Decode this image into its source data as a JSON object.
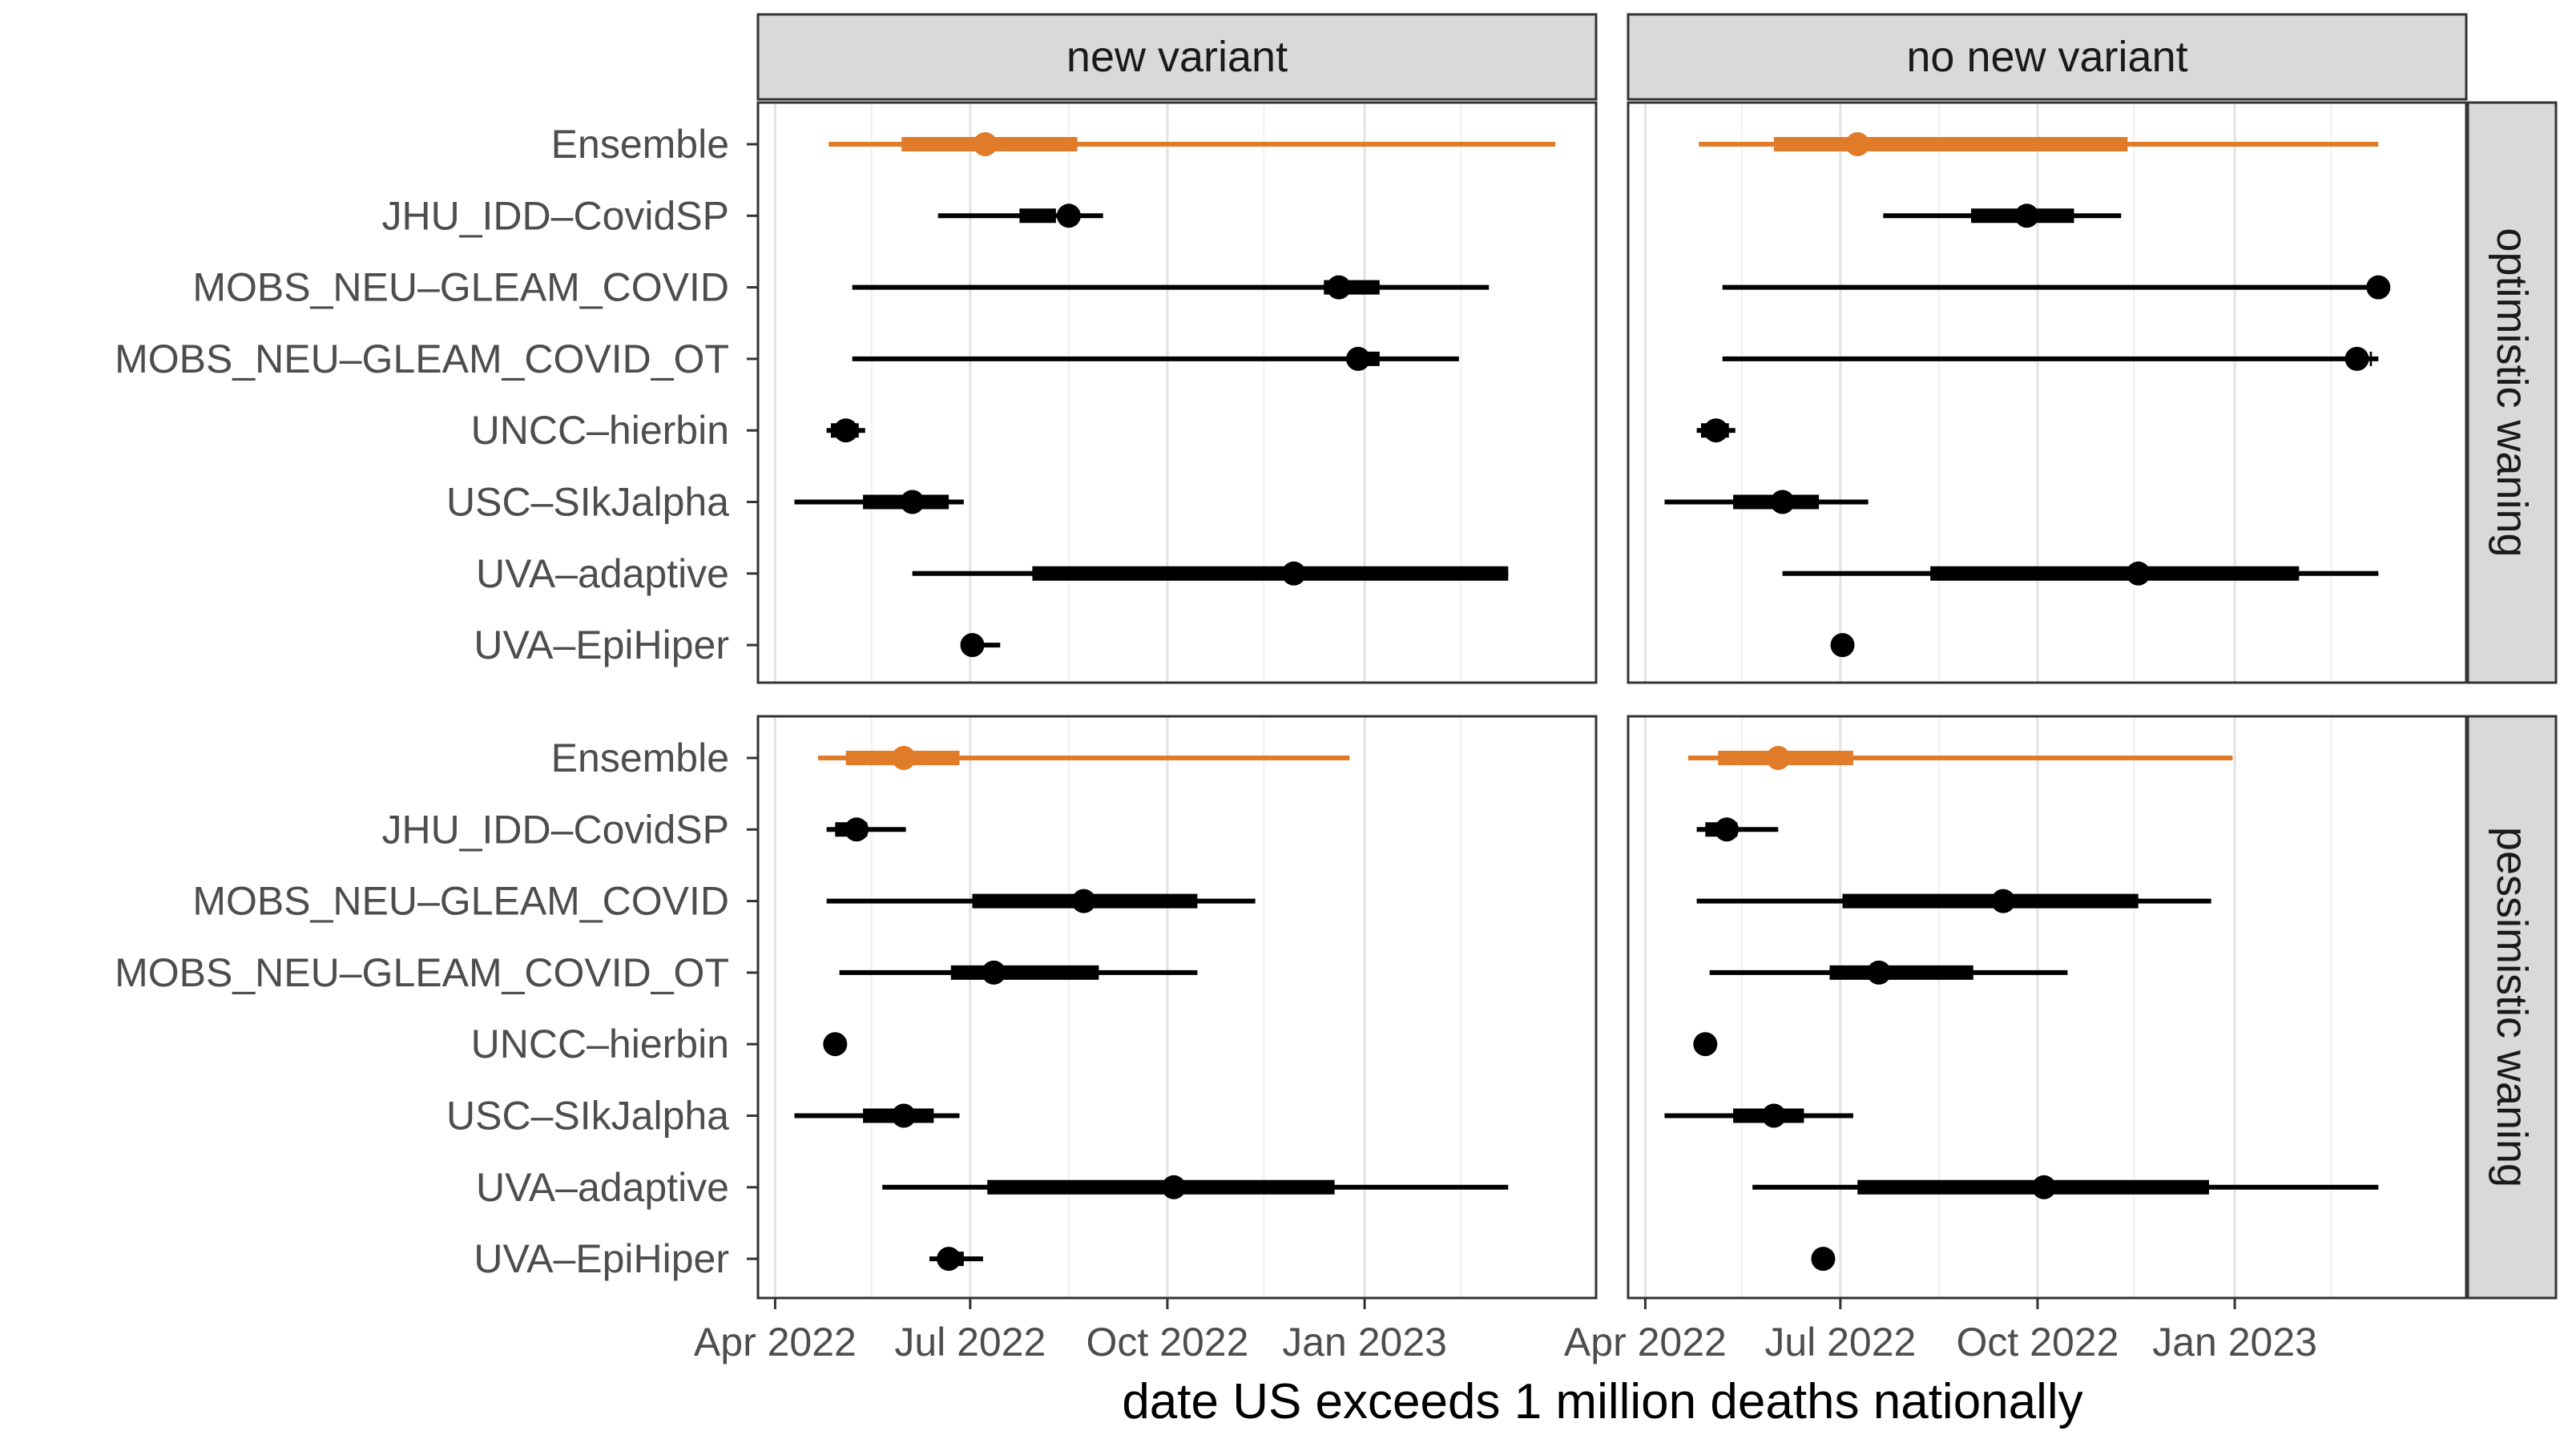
{
  "chart_data": {
    "type": "interval",
    "xlabel": "date US exceeds 1 million deaths nationally",
    "x_ticks": [
      "2022-04-01",
      "2022-07-01",
      "2022-10-01",
      "2023-01-01"
    ],
    "x_tick_labels": [
      "Apr 2022",
      "Jul 2022",
      "Oct 2022",
      "Jan 2023"
    ],
    "xlim": [
      "2022-03-24",
      "2023-04-19"
    ],
    "columns": [
      "new variant",
      "no new variant"
    ],
    "rows": [
      "optimistic waning",
      "pessimistic waning"
    ],
    "models": [
      "Ensemble",
      "JHU_IDD–CovidSP",
      "MOBS_NEU–GLEAM_COVID",
      "MOBS_NEU–GLEAM_COVID_OT",
      "UNCC–hierbin",
      "USC–SIkJalpha",
      "UVA–adaptive",
      "UVA–EpiHiper"
    ],
    "series_colors": {
      "Ensemble": "#E07B2A",
      "default": "#000000"
    },
    "intervals_fields": [
      "outer_low",
      "inner_low",
      "median",
      "inner_high",
      "outer_high"
    ],
    "panels": [
      {
        "column": "new variant",
        "row": "optimistic waning",
        "intervals": [
          [
            "2022-04-26",
            "2022-05-30",
            "2022-07-08",
            "2022-08-20",
            "2023-03-31"
          ],
          [
            "2022-06-16",
            "2022-07-24",
            "2022-08-16",
            "2022-08-10",
            "2022-09-01"
          ],
          [
            "2022-05-07",
            "2022-12-13",
            "2022-12-20",
            "2023-01-08",
            "2023-02-28"
          ],
          [
            "2022-05-07",
            "2022-12-31",
            "2022-12-29",
            "2023-01-08",
            "2023-02-14"
          ],
          [
            "2022-04-25",
            "2022-04-27",
            "2022-05-04",
            "2022-05-10",
            "2022-05-13"
          ],
          [
            "2022-04-10",
            "2022-05-12",
            "2022-06-04",
            "2022-06-21",
            "2022-06-28"
          ],
          [
            "2022-06-04",
            "2022-07-30",
            "2022-11-29",
            "2023-03-09",
            "2023-03-09"
          ],
          [
            "2022-06-30",
            "2022-07-01",
            "2022-07-02",
            "2022-07-04",
            "2022-07-15"
          ]
        ]
      },
      {
        "column": "no new variant",
        "row": "optimistic waning",
        "intervals": [
          [
            "2022-04-26",
            "2022-05-31",
            "2022-07-09",
            "2022-11-12",
            "2023-03-09"
          ],
          [
            "2022-07-21",
            "2022-08-31",
            "2022-09-26",
            "2022-10-18",
            "2022-11-09"
          ],
          [
            "2022-05-07",
            "2023-03-09",
            "2023-03-09",
            "2023-03-09",
            "2023-03-09"
          ],
          [
            "2022-05-07",
            "2023-03-06",
            "2023-02-27",
            "2023-03-05",
            "2023-03-09"
          ],
          [
            "2022-04-25",
            "2022-04-27",
            "2022-05-04",
            "2022-05-10",
            "2022-05-13"
          ],
          [
            "2022-04-10",
            "2022-05-12",
            "2022-06-04",
            "2022-06-21",
            "2022-07-14"
          ],
          [
            "2022-06-04",
            "2022-08-12",
            "2022-11-17",
            "2023-01-31",
            "2023-03-09"
          ],
          [
            "2022-06-30",
            "2022-07-01",
            "2022-07-02",
            "2022-07-04",
            "2022-07-05"
          ]
        ]
      },
      {
        "column": "new variant",
        "row": "pessimistic waning",
        "intervals": [
          [
            "2022-04-21",
            "2022-05-04",
            "2022-05-31",
            "2022-06-26",
            "2022-12-25"
          ],
          [
            "2022-04-25",
            "2022-04-29",
            "2022-05-09",
            "2022-05-14",
            "2022-06-01"
          ],
          [
            "2022-04-25",
            "2022-07-02",
            "2022-08-23",
            "2022-10-15",
            "2022-11-11"
          ],
          [
            "2022-05-01",
            "2022-06-22",
            "2022-07-12",
            "2022-08-30",
            "2022-10-15"
          ],
          [
            "2022-04-29",
            "2022-04-29",
            "2022-04-29",
            "2022-04-29",
            "2022-04-29"
          ],
          [
            "2022-04-10",
            "2022-05-12",
            "2022-05-31",
            "2022-06-14",
            "2022-06-26"
          ],
          [
            "2022-05-21",
            "2022-07-09",
            "2022-10-04",
            "2022-12-18",
            "2023-03-09"
          ],
          [
            "2022-06-12",
            "2022-06-17",
            "2022-06-21",
            "2022-06-28",
            "2022-07-07"
          ]
        ]
      },
      {
        "column": "no new variant",
        "row": "pessimistic waning",
        "intervals": [
          [
            "2022-04-21",
            "2022-05-05",
            "2022-06-02",
            "2022-07-07",
            "2022-12-31"
          ],
          [
            "2022-04-25",
            "2022-04-29",
            "2022-05-09",
            "2022-05-14",
            "2022-06-02"
          ],
          [
            "2022-04-25",
            "2022-07-02",
            "2022-09-15",
            "2022-11-17",
            "2022-12-21"
          ],
          [
            "2022-05-01",
            "2022-06-26",
            "2022-07-19",
            "2022-09-01",
            "2022-10-15"
          ],
          [
            "2022-04-29",
            "2022-04-29",
            "2022-04-29",
            "2022-04-29",
            "2022-04-29"
          ],
          [
            "2022-04-10",
            "2022-05-12",
            "2022-05-31",
            "2022-06-14",
            "2022-07-07"
          ],
          [
            "2022-05-21",
            "2022-07-09",
            "2022-10-04",
            "2022-12-20",
            "2023-03-09"
          ],
          [
            "2022-06-23",
            "2022-06-23",
            "2022-06-23",
            "2022-06-23",
            "2022-06-23"
          ]
        ]
      }
    ]
  }
}
